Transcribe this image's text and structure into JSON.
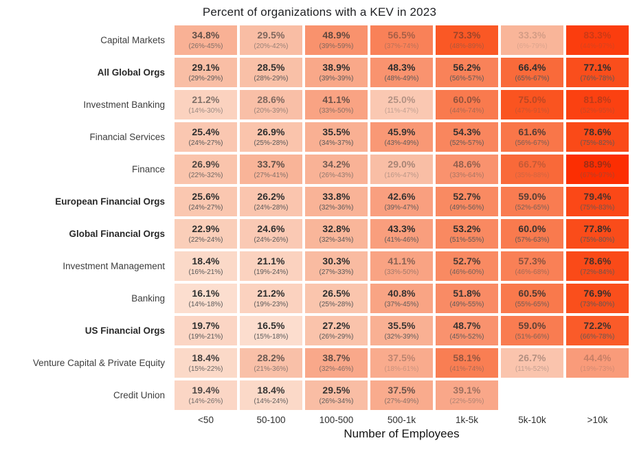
{
  "chart_data": {
    "type": "heatmap",
    "title": "Percent of organizations with a KEV in 2023",
    "xlabel": "Number of Employees",
    "categories": [
      "<50",
      "50-100",
      "100-500",
      "500-1k",
      "1k-5k",
      "5k-10k",
      ">10k"
    ],
    "legend_position": "none",
    "grid": false,
    "value_unit": "%",
    "color_scale": [
      [
        15,
        "#FCE1D3"
      ],
      [
        30,
        "#F9BCA2"
      ],
      [
        45,
        "#F99A78"
      ],
      [
        60,
        "#F97A4E"
      ],
      [
        75,
        "#FA5420"
      ],
      [
        90,
        "#FC2B00"
      ]
    ],
    "text_colors": {
      "value": "#2e2e2e",
      "ci": "#585858"
    },
    "rows": [
      {
        "name": "Capital Markets",
        "bold": false,
        "cells": [
          {
            "value": 34.8,
            "label": "34.8%",
            "ci": "(26%-45%)",
            "text_opacity": 0.75
          },
          {
            "value": 29.5,
            "label": "29.5%",
            "ci": "(20%-42%)",
            "text_opacity": 0.6
          },
          {
            "value": 48.9,
            "label": "48.9%",
            "ci": "(39%-59%)",
            "text_opacity": 0.75
          },
          {
            "value": 56.5,
            "label": "56.5%",
            "ci": "(37%-74%)",
            "text_opacity": 0.4
          },
          {
            "value": 73.3,
            "label": "73.3%",
            "ci": "(48%-89%)",
            "text_opacity": 0.45
          },
          {
            "value": 33.3,
            "label": "33.3%",
            "ci": "(6%-79%)",
            "text_opacity": 0.18
          },
          {
            "value": 83.3,
            "label": "83.3%",
            "ci": "(44%-97%)",
            "text_opacity": 0.22
          }
        ]
      },
      {
        "name": "All Global Orgs",
        "bold": true,
        "cells": [
          {
            "value": 29.1,
            "label": "29.1%",
            "ci": "(29%-29%)",
            "text_opacity": 1
          },
          {
            "value": 28.5,
            "label": "28.5%",
            "ci": "(28%-29%)",
            "text_opacity": 1
          },
          {
            "value": 38.9,
            "label": "38.9%",
            "ci": "(39%-39%)",
            "text_opacity": 1
          },
          {
            "value": 48.3,
            "label": "48.3%",
            "ci": "(48%-49%)",
            "text_opacity": 1
          },
          {
            "value": 56.2,
            "label": "56.2%",
            "ci": "(56%-57%)",
            "text_opacity": 1
          },
          {
            "value": 66.4,
            "label": "66.4%",
            "ci": "(65%-67%)",
            "text_opacity": 1
          },
          {
            "value": 77.1,
            "label": "77.1%",
            "ci": "(76%-78%)",
            "text_opacity": 1
          }
        ]
      },
      {
        "name": "Investment Banking",
        "bold": false,
        "cells": [
          {
            "value": 21.2,
            "label": "21.2%",
            "ci": "(14%-30%)",
            "text_opacity": 0.6
          },
          {
            "value": 28.6,
            "label": "28.6%",
            "ci": "(20%-39%)",
            "text_opacity": 0.6
          },
          {
            "value": 41.1,
            "label": "41.1%",
            "ci": "(33%-50%)",
            "text_opacity": 0.7
          },
          {
            "value": 25.0,
            "label": "25.0%",
            "ci": "(11%-47%)",
            "text_opacity": 0.35
          },
          {
            "value": 60.0,
            "label": "60.0%",
            "ci": "(44%-74%)",
            "text_opacity": 0.5
          },
          {
            "value": 75.0,
            "label": "75.0%",
            "ci": "(47%-91%)",
            "text_opacity": 0.3
          },
          {
            "value": 81.8,
            "label": "81.8%",
            "ci": "(52%-95%)",
            "text_opacity": 0.3
          }
        ]
      },
      {
        "name": "Financial Services",
        "bold": false,
        "cells": [
          {
            "value": 25.4,
            "label": "25.4%",
            "ci": "(24%-27%)",
            "text_opacity": 1
          },
          {
            "value": 26.9,
            "label": "26.9%",
            "ci": "(25%-28%)",
            "text_opacity": 1
          },
          {
            "value": 35.5,
            "label": "35.5%",
            "ci": "(34%-37%)",
            "text_opacity": 1
          },
          {
            "value": 45.9,
            "label": "45.9%",
            "ci": "(43%-49%)",
            "text_opacity": 0.95
          },
          {
            "value": 54.3,
            "label": "54.3%",
            "ci": "(52%-57%)",
            "text_opacity": 0.95
          },
          {
            "value": 61.6,
            "label": "61.6%",
            "ci": "(56%-67%)",
            "text_opacity": 0.8
          },
          {
            "value": 78.6,
            "label": "78.6%",
            "ci": "(75%-82%)",
            "text_opacity": 0.9
          }
        ]
      },
      {
        "name": "Finance",
        "bold": false,
        "cells": [
          {
            "value": 26.9,
            "label": "26.9%",
            "ci": "(22%-32%)",
            "text_opacity": 0.85
          },
          {
            "value": 33.7,
            "label": "33.7%",
            "ci": "(27%-41%)",
            "text_opacity": 0.75
          },
          {
            "value": 34.2,
            "label": "34.2%",
            "ci": "(26%-43%)",
            "text_opacity": 0.65
          },
          {
            "value": 29.0,
            "label": "29.0%",
            "ci": "(16%-47%)",
            "text_opacity": 0.4
          },
          {
            "value": 48.6,
            "label": "48.6%",
            "ci": "(33%-64%)",
            "text_opacity": 0.5
          },
          {
            "value": 66.7,
            "label": "66.7%",
            "ci": "(35%-88%)",
            "text_opacity": 0.25
          },
          {
            "value": 88.9,
            "label": "88.9%",
            "ci": "(67%-97%)",
            "text_opacity": 0.45
          }
        ]
      },
      {
        "name": "European Financial Orgs",
        "bold": true,
        "cells": [
          {
            "value": 25.6,
            "label": "25.6%",
            "ci": "(24%-27%)",
            "text_opacity": 1
          },
          {
            "value": 26.2,
            "label": "26.2%",
            "ci": "(24%-28%)",
            "text_opacity": 1
          },
          {
            "value": 33.8,
            "label": "33.8%",
            "ci": "(32%-36%)",
            "text_opacity": 1
          },
          {
            "value": 42.6,
            "label": "42.6%",
            "ci": "(39%-47%)",
            "text_opacity": 0.95
          },
          {
            "value": 52.7,
            "label": "52.7%",
            "ci": "(49%-56%)",
            "text_opacity": 0.95
          },
          {
            "value": 59.0,
            "label": "59.0%",
            "ci": "(52%-65%)",
            "text_opacity": 0.8
          },
          {
            "value": 79.4,
            "label": "79.4%",
            "ci": "(75%-83%)",
            "text_opacity": 0.85
          }
        ]
      },
      {
        "name": "Global Financial Orgs",
        "bold": true,
        "cells": [
          {
            "value": 22.9,
            "label": "22.9%",
            "ci": "(22%-24%)",
            "text_opacity": 1
          },
          {
            "value": 24.6,
            "label": "24.6%",
            "ci": "(24%-26%)",
            "text_opacity": 1
          },
          {
            "value": 32.8,
            "label": "32.8%",
            "ci": "(32%-34%)",
            "text_opacity": 1
          },
          {
            "value": 43.3,
            "label": "43.3%",
            "ci": "(41%-46%)",
            "text_opacity": 1
          },
          {
            "value": 53.2,
            "label": "53.2%",
            "ci": "(51%-55%)",
            "text_opacity": 1
          },
          {
            "value": 60.0,
            "label": "60.0%",
            "ci": "(57%-63%)",
            "text_opacity": 0.95
          },
          {
            "value": 77.8,
            "label": "77.8%",
            "ci": "(75%-80%)",
            "text_opacity": 0.95
          }
        ]
      },
      {
        "name": "Investment Management",
        "bold": false,
        "cells": [
          {
            "value": 18.4,
            "label": "18.4%",
            "ci": "(16%-21%)",
            "text_opacity": 1
          },
          {
            "value": 21.1,
            "label": "21.1%",
            "ci": "(19%-24%)",
            "text_opacity": 1
          },
          {
            "value": 30.3,
            "label": "30.3%",
            "ci": "(27%-33%)",
            "text_opacity": 1
          },
          {
            "value": 41.1,
            "label": "41.1%",
            "ci": "(33%-50%)",
            "text_opacity": 0.55
          },
          {
            "value": 52.7,
            "label": "52.7%",
            "ci": "(46%-60%)",
            "text_opacity": 0.85
          },
          {
            "value": 57.3,
            "label": "57.3%",
            "ci": "(46%-68%)",
            "text_opacity": 0.55
          },
          {
            "value": 78.6,
            "label": "78.6%",
            "ci": "(72%-84%)",
            "text_opacity": 0.85
          }
        ]
      },
      {
        "name": "Banking",
        "bold": false,
        "cells": [
          {
            "value": 16.1,
            "label": "16.1%",
            "ci": "(14%-18%)",
            "text_opacity": 1
          },
          {
            "value": 21.2,
            "label": "21.2%",
            "ci": "(19%-23%)",
            "text_opacity": 1
          },
          {
            "value": 26.5,
            "label": "26.5%",
            "ci": "(25%-28%)",
            "text_opacity": 1
          },
          {
            "value": 40.8,
            "label": "40.8%",
            "ci": "(37%-45%)",
            "text_opacity": 0.95
          },
          {
            "value": 51.8,
            "label": "51.8%",
            "ci": "(49%-55%)",
            "text_opacity": 0.95
          },
          {
            "value": 60.5,
            "label": "60.5%",
            "ci": "(55%-65%)",
            "text_opacity": 0.85
          },
          {
            "value": 76.9,
            "label": "76.9%",
            "ci": "(73%-80%)",
            "text_opacity": 0.95
          }
        ]
      },
      {
        "name": "US Financial Orgs",
        "bold": true,
        "cells": [
          {
            "value": 19.7,
            "label": "19.7%",
            "ci": "(19%-21%)",
            "text_opacity": 1
          },
          {
            "value": 16.5,
            "label": "16.5%",
            "ci": "(15%-18%)",
            "text_opacity": 1
          },
          {
            "value": 27.2,
            "label": "27.2%",
            "ci": "(26%-29%)",
            "text_opacity": 1
          },
          {
            "value": 35.5,
            "label": "35.5%",
            "ci": "(32%-39%)",
            "text_opacity": 0.95
          },
          {
            "value": 48.7,
            "label": "48.7%",
            "ci": "(45%-52%)",
            "text_opacity": 0.95
          },
          {
            "value": 59.0,
            "label": "59.0%",
            "ci": "(51%-66%)",
            "text_opacity": 0.75
          },
          {
            "value": 72.2,
            "label": "72.2%",
            "ci": "(66%-78%)",
            "text_opacity": 0.9
          }
        ]
      },
      {
        "name": "Venture Capital & Private Equity",
        "bold": false,
        "cells": [
          {
            "value": 18.4,
            "label": "18.4%",
            "ci": "(15%-22%)",
            "text_opacity": 0.9
          },
          {
            "value": 28.2,
            "label": "28.2%",
            "ci": "(21%-36%)",
            "text_opacity": 0.7
          },
          {
            "value": 38.7,
            "label": "38.7%",
            "ci": "(32%-46%)",
            "text_opacity": 0.75
          },
          {
            "value": 37.5,
            "label": "37.5%",
            "ci": "(18%-61%)",
            "text_opacity": 0.3
          },
          {
            "value": 58.1,
            "label": "58.1%",
            "ci": "(41%-74%)",
            "text_opacity": 0.5
          },
          {
            "value": 26.7,
            "label": "26.7%",
            "ci": "(11%-52%)",
            "text_opacity": 0.35
          },
          {
            "value": 44.4,
            "label": "44.4%",
            "ci": "(19%-73%)",
            "text_opacity": 0.25
          }
        ]
      },
      {
        "name": "Credit Union",
        "bold": false,
        "cells": [
          {
            "value": 19.4,
            "label": "19.4%",
            "ci": "(14%-26%)",
            "text_opacity": 0.85
          },
          {
            "value": 18.4,
            "label": "18.4%",
            "ci": "(14%-24%)",
            "text_opacity": 0.95
          },
          {
            "value": 29.5,
            "label": "29.5%",
            "ci": "(26%-34%)",
            "text_opacity": 0.95
          },
          {
            "value": 37.5,
            "label": "37.5%",
            "ci": "(27%-49%)",
            "text_opacity": 0.7
          },
          {
            "value": 39.1,
            "label": "39.1%",
            "ci": "(22%-59%)",
            "text_opacity": 0.45
          },
          null,
          null
        ]
      }
    ]
  }
}
